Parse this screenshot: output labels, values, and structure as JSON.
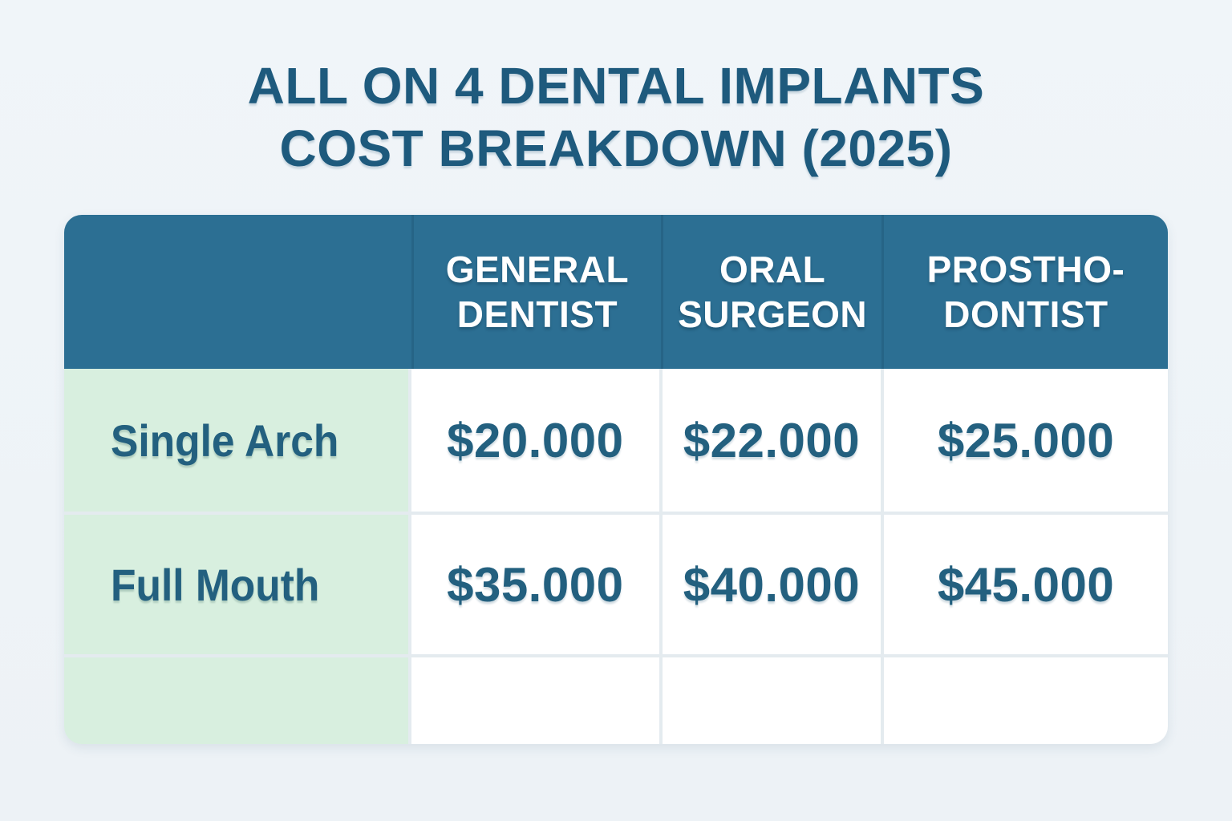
{
  "title": {
    "line1": "ALL ON 4 DENTAL IMPLANTS",
    "line2": "COST BREAKDOWN (2025)"
  },
  "chart_data": {
    "type": "table",
    "title": "All on 4 Dental Implants Cost Breakdown (2025)",
    "columns": [
      "",
      "GENERAL DENTIST",
      "ORAL SURGEON",
      "PROSTHO-DONTIST"
    ],
    "rows": [
      {
        "label": "Single Arch",
        "values": [
          "$20.000",
          "$22.000",
          "$25.000"
        ]
      },
      {
        "label": "Full Mouth",
        "values": [
          "$35.000",
          "$40.000",
          "$45.000"
        ]
      },
      {
        "label": "",
        "values": [
          "",
          "",
          ""
        ]
      }
    ],
    "layout": {
      "header_position": "top",
      "label_column_position": "left",
      "empty_trailing_row": true,
      "grid": "on"
    }
  },
  "table": {
    "headers": [
      {
        "line1": "GENERAL",
        "line2": "DENTIST"
      },
      {
        "line1": "ORAL",
        "line2": "SURGEON"
      },
      {
        "line1": "PROSTHO-",
        "line2": "DONTIST"
      }
    ]
  },
  "colors": {
    "page_background": "#eef3f7",
    "title_text": "#1e5a7d",
    "header_background": "#2c6f93",
    "header_divider": "#266486",
    "header_text": "#ffffff",
    "label_cell_background": "#d8efdf",
    "value_cell_background": "#ffffff",
    "cell_text": "#23607f",
    "grid_line": "#e4ebef"
  }
}
